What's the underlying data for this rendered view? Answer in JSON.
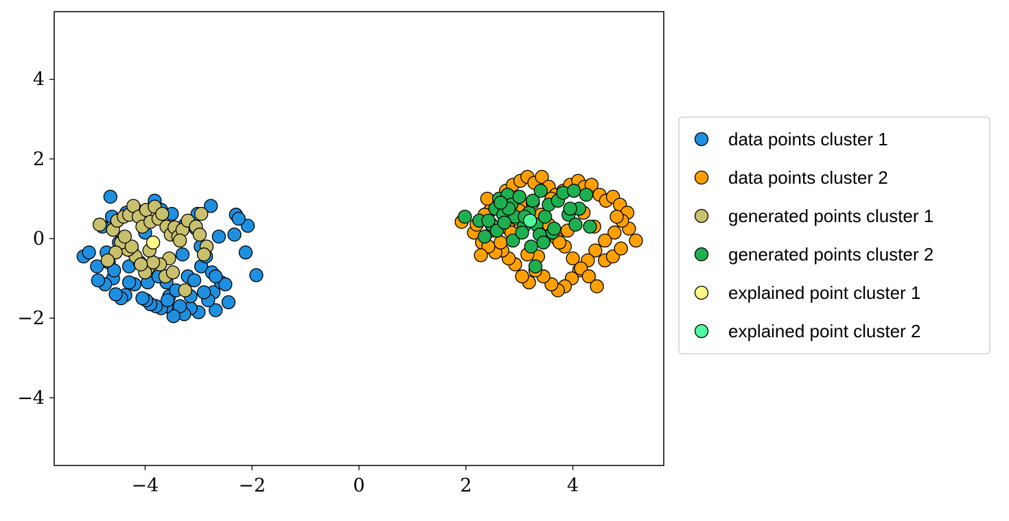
{
  "chart_data": {
    "type": "scatter",
    "title": "",
    "xlabel": "",
    "ylabel": "",
    "xlim": [
      -5.7,
      5.7
    ],
    "ylim": [
      -5.7,
      5.7
    ],
    "x_ticks": [
      -4,
      -2,
      0,
      2,
      4
    ],
    "y_ticks": [
      -4,
      -2,
      0,
      2,
      4
    ],
    "x_tick_labels": [
      "−4",
      "−2",
      "0",
      "2",
      "4"
    ],
    "y_tick_labels": [
      "−4",
      "−2",
      "0",
      "2",
      "4"
    ],
    "grid": false,
    "legend_position": "outside-right",
    "series": [
      {
        "name": "data points cluster 1",
        "color": "#1f8fe0",
        "x": [
          -4.65,
          -3.82,
          -3.02,
          -2.77,
          -2.3,
          -2.08,
          -1.92,
          -2.25,
          -2.33,
          -2.12,
          -2.44,
          -2.68,
          -2.72,
          -2.82,
          -3.0,
          -3.15,
          -3.27,
          -3.35,
          -3.47,
          -3.55,
          -3.6,
          -3.7,
          -3.8,
          -3.9,
          -3.98,
          -4.05,
          -4.2,
          -4.3,
          -4.37,
          -4.45,
          -4.55,
          -4.6,
          -4.68,
          -4.75,
          -4.88,
          -5.15,
          -4.9,
          -4.72,
          -4.58,
          -4.49,
          -4.3,
          -3.95,
          -3.6,
          -3.42,
          -3.2,
          -3.08,
          -2.95,
          -2.86,
          -2.75,
          -2.58,
          -2.5,
          -2.96,
          -3.25,
          -3.5,
          -3.7,
          -4.15,
          -4.35,
          -4.62,
          -4.8,
          -4.52,
          -4.0,
          -3.3,
          -3.05,
          -2.62,
          -2.9,
          -3.75,
          -4.1,
          -4.25,
          -5.05,
          -3.58,
          -3.15,
          -2.68
        ],
        "y": [
          1.05,
          0.95,
          0.62,
          0.82,
          0.6,
          0.32,
          -0.92,
          0.5,
          0.1,
          -0.35,
          -1.6,
          -1.8,
          -1.35,
          -1.55,
          -1.85,
          -1.75,
          -1.9,
          -1.7,
          -1.95,
          -1.45,
          -1.7,
          -1.75,
          -1.7,
          -1.65,
          -1.55,
          -1.5,
          -1.15,
          -1.1,
          -1.42,
          -1.5,
          -1.4,
          -1.0,
          -0.6,
          -1.15,
          -1.05,
          -0.45,
          -0.7,
          -0.35,
          -0.8,
          -0.1,
          -0.7,
          -1.1,
          -1.1,
          -1.3,
          -0.95,
          -1.05,
          -0.7,
          -0.45,
          -0.85,
          -1.1,
          -1.15,
          -0.2,
          0.35,
          0.62,
          0.72,
          0.7,
          0.65,
          0.55,
          0.3,
          0.45,
          0.15,
          -0.4,
          0.25,
          0.05,
          -1.35,
          -0.95,
          -0.6,
          -0.3,
          -0.35,
          -1.55,
          -1.45,
          -0.95
        ]
      },
      {
        "name": "data points cluster 2",
        "color": "#ffa000",
        "x": [
          1.92,
          2.15,
          2.3,
          2.45,
          2.6,
          2.75,
          2.88,
          3.02,
          3.15,
          3.28,
          3.42,
          3.55,
          3.68,
          3.82,
          3.95,
          4.1,
          4.22,
          4.35,
          4.5,
          4.62,
          4.75,
          4.88,
          5.02,
          5.18,
          5.05,
          4.92,
          4.78,
          4.6,
          4.42,
          4.28,
          4.12,
          3.98,
          3.85,
          3.72,
          3.6,
          3.45,
          3.3,
          3.18,
          3.05,
          2.92,
          2.8,
          2.68,
          2.55,
          2.42,
          2.28,
          2.2,
          2.35,
          2.5,
          2.65,
          2.8,
          2.95,
          3.1,
          3.25,
          3.4,
          3.55,
          3.7,
          3.85,
          4.0,
          4.15,
          4.3,
          4.45,
          4.6,
          4.75,
          4.9,
          2.4,
          3.0,
          3.6,
          4.2,
          4.82,
          3.9,
          3.35,
          2.85,
          4.4,
          3.75,
          3.15
        ],
        "y": [
          0.42,
          0.15,
          -0.1,
          0.7,
          0.95,
          1.2,
          1.35,
          1.45,
          1.55,
          1.4,
          1.55,
          1.3,
          1.1,
          1.2,
          1.35,
          1.45,
          1.3,
          1.35,
          1.1,
          0.95,
          1.05,
          0.85,
          0.65,
          -0.05,
          0.25,
          0.45,
          0.15,
          -0.05,
          -0.3,
          -0.55,
          -0.8,
          -1.0,
          -1.2,
          -1.3,
          -1.15,
          -0.95,
          -0.8,
          -1.1,
          -0.95,
          -0.65,
          -0.5,
          -0.3,
          -0.35,
          -0.2,
          -0.42,
          0.35,
          0.6,
          0.2,
          -0.1,
          0.25,
          0.5,
          0.85,
          0.9,
          0.6,
          0.35,
          0.0,
          -0.2,
          -0.5,
          -0.75,
          -0.95,
          -1.2,
          -0.55,
          -0.45,
          -0.25,
          1.0,
          0.7,
          1.0,
          0.65,
          0.55,
          0.2,
          -0.45,
          0.15,
          0.3,
          -0.1,
          -0.4
        ]
      },
      {
        "name": "generated points cluster 1",
        "color": "#c8c06c",
        "x": [
          -4.85,
          -4.6,
          -4.52,
          -4.4,
          -4.3,
          -4.22,
          -4.12,
          -4.05,
          -3.98,
          -3.9,
          -3.82,
          -3.75,
          -3.68,
          -3.6,
          -3.52,
          -3.45,
          -3.38,
          -3.3,
          -3.2,
          -3.05,
          -2.95,
          -2.85,
          -2.98,
          -3.35,
          -3.55,
          -3.72,
          -3.95,
          -4.18,
          -4.32,
          -4.45,
          -4.55,
          -4.7,
          -4.0,
          -3.85,
          -3.62,
          -4.25,
          -3.48,
          -4.38,
          -3.92,
          -3.25,
          -2.9,
          -4.08
        ],
        "y": [
          0.35,
          0.22,
          0.45,
          0.55,
          0.6,
          0.82,
          0.55,
          0.3,
          0.72,
          0.42,
          0.8,
          0.5,
          0.62,
          0.3,
          0.1,
          0.28,
          0.05,
          0.22,
          0.45,
          0.3,
          0.62,
          -0.2,
          0.1,
          -0.05,
          -0.5,
          -0.65,
          -0.75,
          -0.45,
          -0.28,
          -0.1,
          -0.35,
          -0.55,
          -0.85,
          -0.6,
          -0.95,
          -0.2,
          -0.85,
          0.05,
          -0.3,
          -1.3,
          -0.4,
          -0.65
        ]
      },
      {
        "name": "generated points cluster 2",
        "color": "#1eb050",
        "x": [
          1.98,
          2.25,
          2.35,
          2.48,
          2.55,
          2.62,
          2.7,
          2.78,
          2.85,
          2.92,
          3.0,
          3.08,
          3.18,
          3.25,
          3.32,
          3.4,
          3.48,
          3.55,
          3.62,
          3.72,
          3.82,
          3.92,
          4.02,
          4.12,
          4.25,
          4.32,
          2.42,
          2.58,
          2.72,
          2.88,
          3.05,
          3.22,
          3.38,
          2.8,
          3.1,
          3.45,
          3.65,
          4.05,
          2.65,
          3.95,
          3.3
        ],
        "y": [
          0.55,
          0.45,
          0.05,
          0.35,
          0.75,
          1.0,
          0.6,
          1.1,
          0.85,
          0.55,
          1.05,
          0.3,
          0.65,
          0.95,
          0.35,
          1.2,
          0.55,
          0.85,
          0.15,
          0.95,
          1.15,
          0.6,
          1.2,
          0.75,
          1.1,
          0.3,
          0.45,
          0.2,
          0.4,
          -0.05,
          0.15,
          -0.2,
          0.1,
          0.75,
          0.55,
          -0.1,
          0.25,
          0.35,
          0.9,
          0.75,
          -0.7
        ]
      },
      {
        "name": "explained point cluster 1",
        "color": "#fdfa8a",
        "x": [
          -3.85
        ],
        "y": [
          -0.1
        ]
      },
      {
        "name": "explained point cluster 2",
        "color": "#50f8a0",
        "x": [
          3.2
        ],
        "y": [
          0.45
        ]
      }
    ]
  }
}
